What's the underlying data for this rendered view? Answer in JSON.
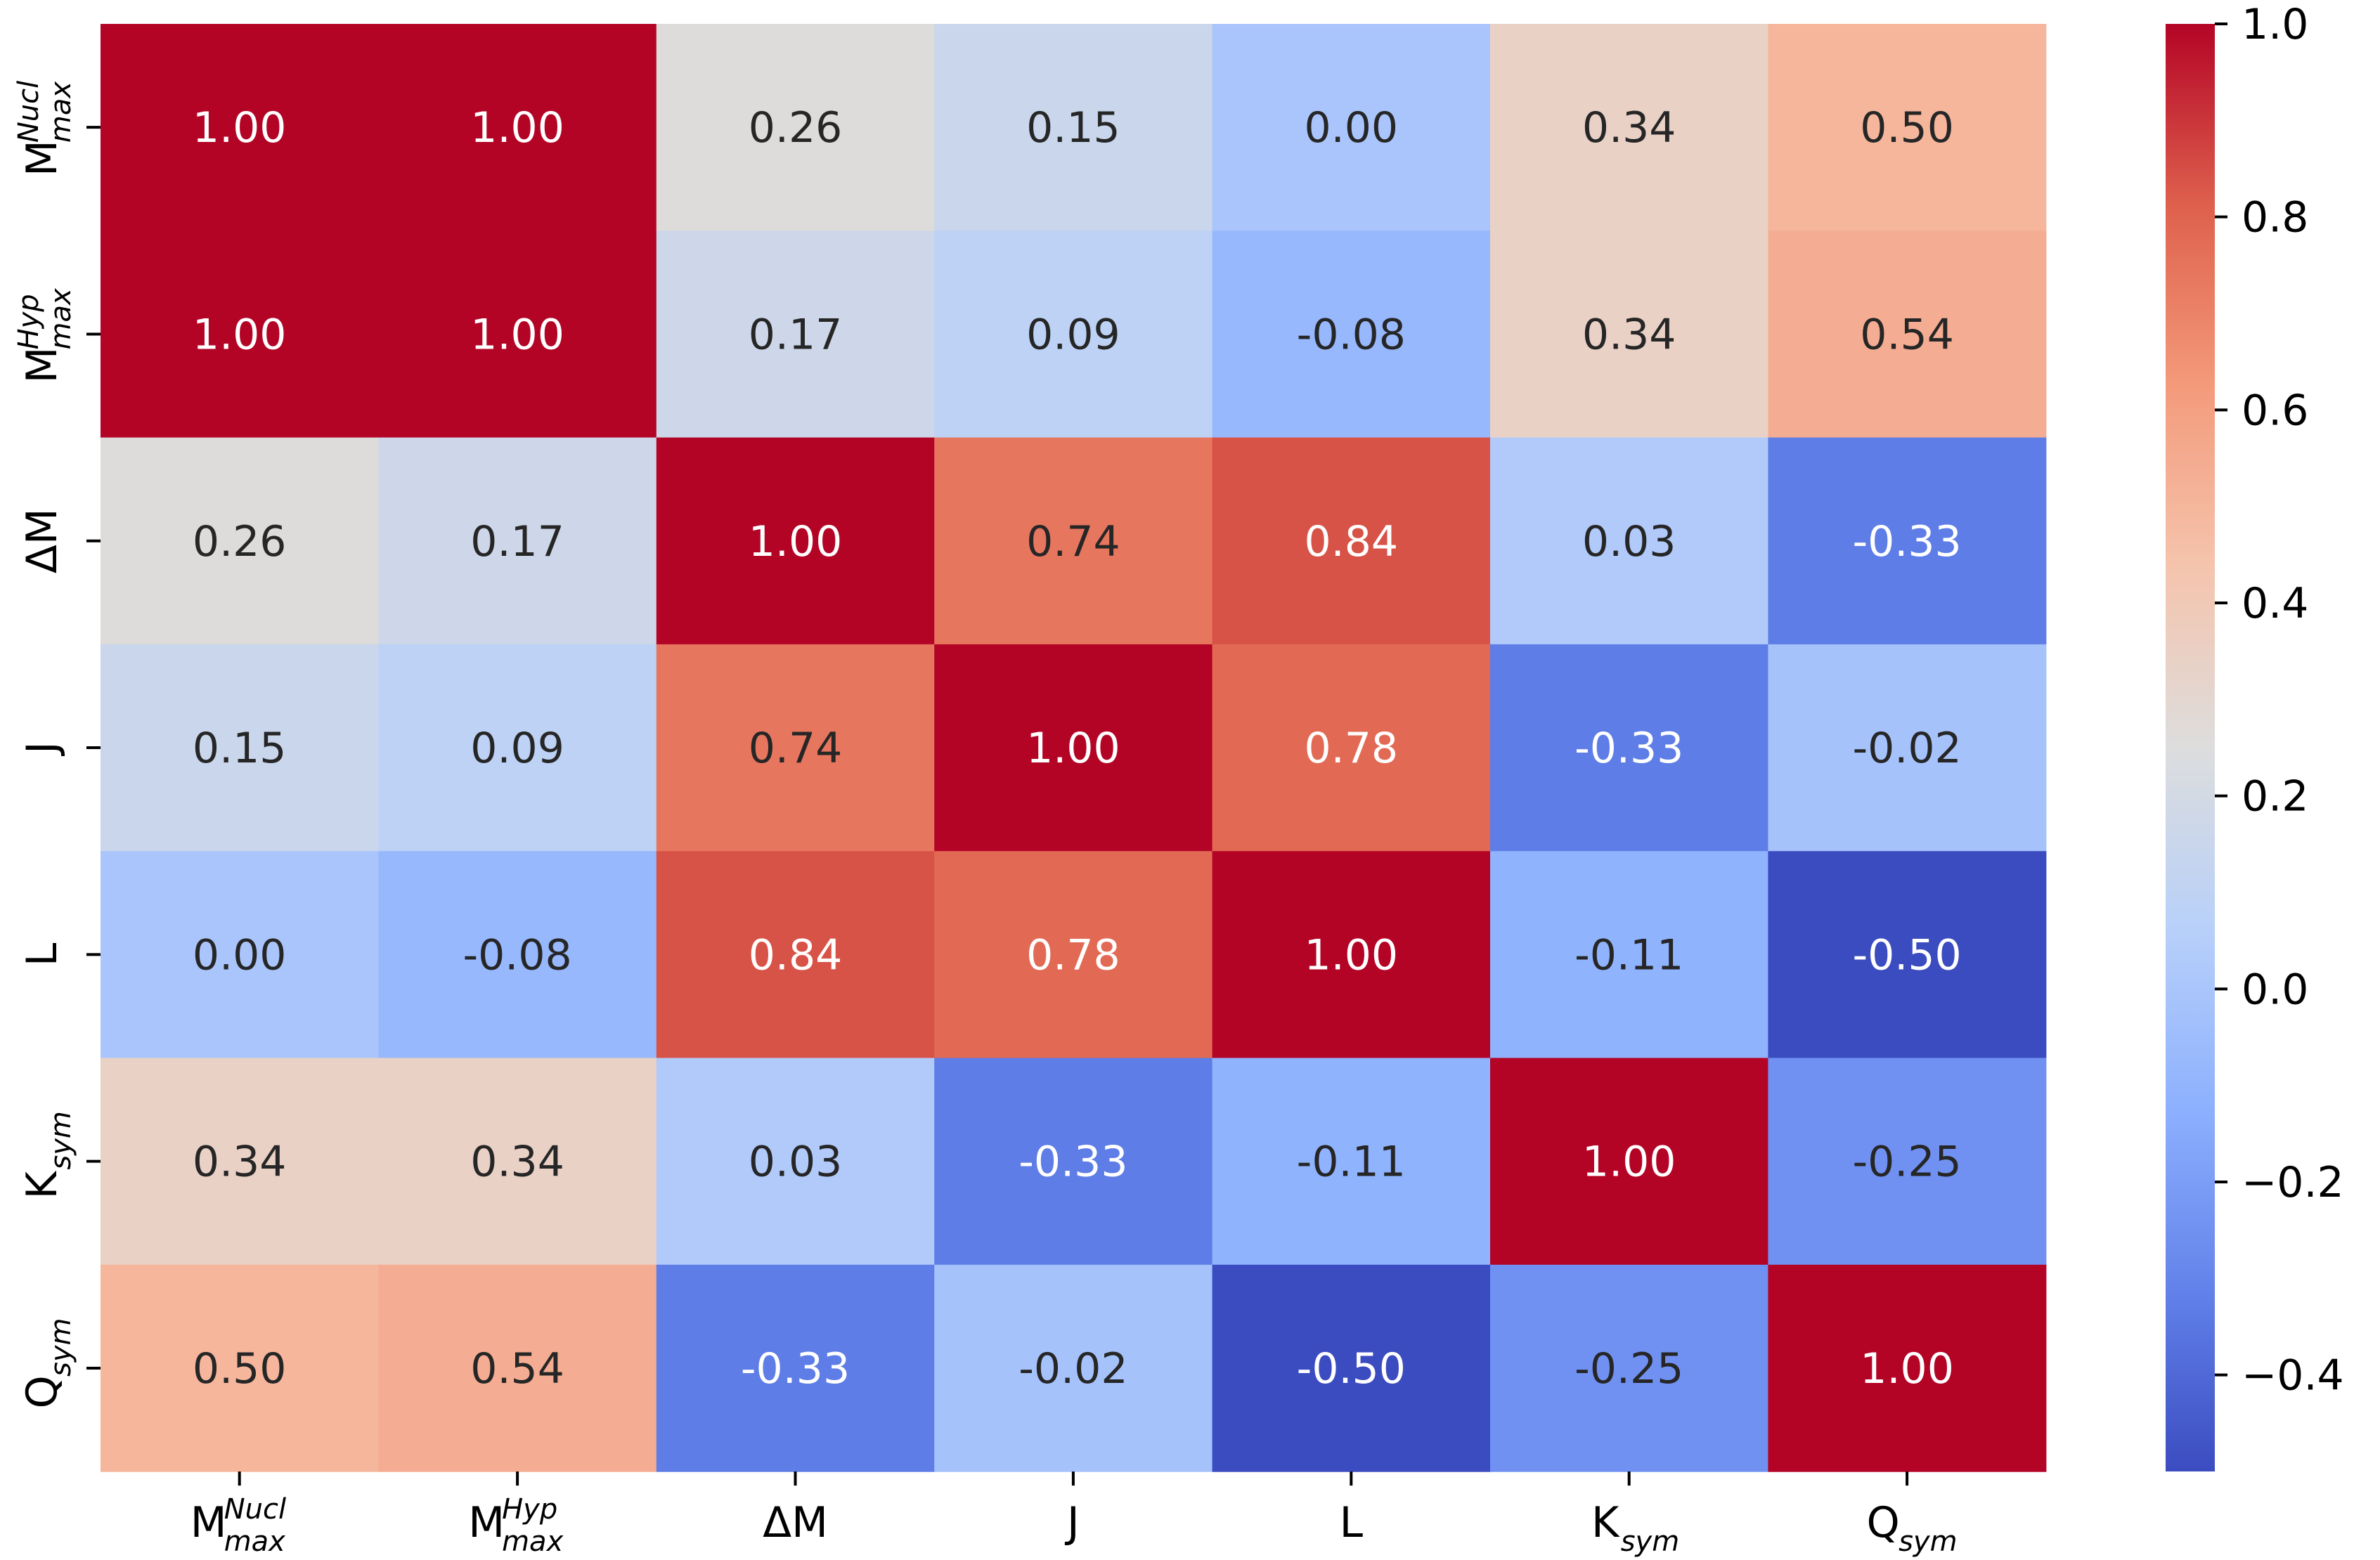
{
  "chart_data": {
    "type": "heatmap",
    "title": "",
    "xlabel": "",
    "ylabel": "",
    "labels": [
      {
        "main": "M",
        "sup": "Nucl",
        "sub": "max"
      },
      {
        "main": "M",
        "sup": "Hyp",
        "sub": "max"
      },
      {
        "main": "ΔM",
        "sup": "",
        "sub": ""
      },
      {
        "main": "J",
        "sup": "",
        "sub": ""
      },
      {
        "main": "L",
        "sup": "",
        "sub": ""
      },
      {
        "main": "K",
        "sup": "",
        "sub": "sym"
      },
      {
        "main": "Q",
        "sup": "",
        "sub": "sym"
      }
    ],
    "matrix": [
      [
        1.0,
        1.0,
        0.26,
        0.15,
        0.0,
        0.34,
        0.5
      ],
      [
        1.0,
        1.0,
        0.17,
        0.09,
        -0.08,
        0.34,
        0.54
      ],
      [
        0.26,
        0.17,
        1.0,
        0.74,
        0.84,
        0.03,
        -0.33
      ],
      [
        0.15,
        0.09,
        0.74,
        1.0,
        0.78,
        -0.33,
        -0.02
      ],
      [
        0.0,
        -0.08,
        0.84,
        0.78,
        1.0,
        -0.11,
        -0.5
      ],
      [
        0.34,
        0.34,
        0.03,
        -0.33,
        -0.11,
        1.0,
        -0.25
      ],
      [
        0.5,
        0.54,
        -0.33,
        -0.02,
        -0.5,
        -0.25,
        1.0
      ]
    ],
    "colormap": "coolwarm",
    "vmin": -0.5,
    "vmax": 1.0,
    "colorbar_ticks": [
      1.0,
      0.8,
      0.6,
      0.4,
      0.2,
      0.0,
      -0.2,
      -0.4
    ],
    "colorbar_tick_labels": [
      "1.0",
      "0.8",
      "0.6",
      "0.4",
      "0.2",
      "0.0",
      "−0.2",
      "−0.4"
    ],
    "value_format": "2 decimals"
  }
}
